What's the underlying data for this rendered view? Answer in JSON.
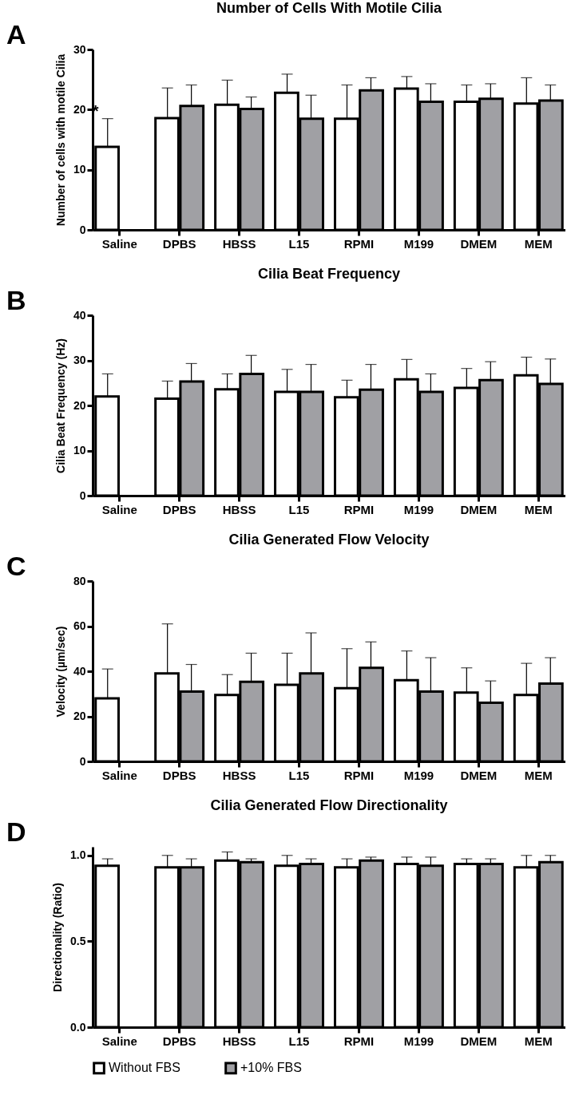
{
  "chart_data": [
    {
      "type": "bar",
      "title": "Number of Cells With Motile Cilia",
      "ylabel": "Number of cells with motile Cilia",
      "annotations": [
        "A",
        {
          "text": "*",
          "x": "Saline",
          "y": 13.8
        }
      ],
      "categories": [
        "Saline",
        "DPBS",
        "HBSS",
        "L15",
        "RPMI",
        "M199",
        "DMEM",
        "MEM"
      ],
      "ylim": [
        0,
        30
      ],
      "yticks": [
        0,
        10,
        20,
        30
      ],
      "grid": false,
      "series": [
        {
          "color": "#ffffff",
          "values": [
            13.8,
            18.6,
            20.8,
            22.8,
            18.5,
            23.5,
            21.3,
            21.0
          ],
          "errors": [
            [
              13.8,
              18.5
            ],
            [
              18.6,
              23.6
            ],
            [
              20.8,
              24.9
            ],
            [
              22.8,
              25.9
            ],
            [
              18.5,
              24.1
            ],
            [
              23.5,
              25.5
            ],
            [
              21.3,
              24.1
            ],
            [
              21.0,
              25.3
            ]
          ]
        },
        {
          "color": "#a0a0a4",
          "values": [
            null,
            20.6,
            20.1,
            18.5,
            23.2,
            21.3,
            21.8,
            21.5
          ],
          "errors": [
            null,
            [
              20.6,
              24.1
            ],
            [
              20.1,
              22.1
            ],
            [
              18.5,
              22.4
            ],
            [
              23.2,
              25.3
            ],
            [
              21.3,
              24.3
            ],
            [
              21.8,
              24.3
            ],
            [
              21.5,
              24.1
            ]
          ]
        }
      ]
    },
    {
      "type": "bar",
      "title": "Cilia Beat Frequency",
      "ylabel": "Cilia Beat Frequency (Hz)",
      "annotations": [
        "B"
      ],
      "categories": [
        "Saline",
        "DPBS",
        "HBSS",
        "L15",
        "RPMI",
        "M199",
        "DMEM",
        "MEM"
      ],
      "ylim": [
        0,
        40
      ],
      "yticks": [
        0,
        10,
        20,
        30,
        40
      ],
      "grid": false,
      "series": [
        {
          "color": "#ffffff",
          "values": [
            22.0,
            21.5,
            23.6,
            23.0,
            21.8,
            25.8,
            23.9,
            26.7
          ],
          "errors": [
            [
              22.0,
              27.0
            ],
            [
              21.5,
              25.4
            ],
            [
              23.6,
              27.0
            ],
            [
              23.0,
              28.0
            ],
            [
              21.8,
              25.6
            ],
            [
              25.8,
              30.2
            ],
            [
              23.9,
              28.2
            ],
            [
              26.7,
              30.7
            ]
          ]
        },
        {
          "color": "#a0a0a4",
          "values": [
            null,
            25.3,
            27.0,
            23.0,
            23.5,
            23.0,
            25.6,
            24.8
          ],
          "errors": [
            null,
            [
              25.3,
              29.3
            ],
            [
              27.0,
              31.1
            ],
            [
              23.0,
              29.1
            ],
            [
              23.5,
              29.1
            ],
            [
              23.0,
              27.0
            ],
            [
              25.6,
              29.7
            ],
            [
              24.8,
              30.3
            ]
          ]
        }
      ]
    },
    {
      "type": "bar",
      "title": "Cilia Generated Flow Velocity",
      "ylabel": "Velocity (µm/sec)",
      "annotations": [
        "C"
      ],
      "categories": [
        "Saline",
        "DPBS",
        "HBSS",
        "L15",
        "RPMI",
        "M199",
        "DMEM",
        "MEM"
      ],
      "ylim": [
        0,
        80
      ],
      "yticks": [
        0,
        20,
        40,
        60,
        80
      ],
      "grid": false,
      "series": [
        {
          "color": "#ffffff",
          "values": [
            28,
            39,
            29.5,
            34,
            32.5,
            36,
            30.5,
            29.5
          ],
          "errors": [
            [
              28,
              41
            ],
            [
              39,
              61
            ],
            [
              29.5,
              38.5
            ],
            [
              34,
              48
            ],
            [
              32.5,
              50
            ],
            [
              36,
              49
            ],
            [
              30.5,
              41.5
            ],
            [
              29.5,
              43.5
            ]
          ]
        },
        {
          "color": "#a0a0a4",
          "values": [
            null,
            31,
            35.3,
            39,
            41.5,
            31,
            26,
            34.5
          ],
          "errors": [
            null,
            [
              31,
              43
            ],
            [
              35.3,
              48
            ],
            [
              39,
              57
            ],
            [
              41.5,
              53
            ],
            [
              31,
              46
            ],
            [
              26,
              35.7
            ],
            [
              34.5,
              46
            ]
          ]
        }
      ]
    },
    {
      "type": "bar",
      "title": "Cilia Generated Flow Directionality",
      "ylabel": "Directionality (Ratio)",
      "annotations": [
        "D"
      ],
      "categories": [
        "Saline",
        "DPBS",
        "HBSS",
        "L15",
        "RPMI",
        "M199",
        "DMEM",
        "MEM"
      ],
      "ylim": [
        0,
        1.05
      ],
      "yticks": [
        {
          "value": 0,
          "label": "0.0"
        },
        {
          "value": 0.5,
          "label": "0.5"
        },
        {
          "value": 1,
          "label": "1.0"
        }
      ],
      "grid": false,
      "legend": "bottom",
      "series": [
        {
          "name": "Without FBS",
          "color": "#ffffff",
          "values": [
            0.94,
            0.93,
            0.97,
            0.94,
            0.93,
            0.95,
            0.95,
            0.93
          ],
          "errors": [
            [
              0.94,
              0.98
            ],
            [
              0.93,
              1.0
            ],
            [
              0.97,
              1.02
            ],
            [
              0.94,
              1.0
            ],
            [
              0.93,
              0.98
            ],
            [
              0.95,
              0.99
            ],
            [
              0.95,
              0.98
            ],
            [
              0.93,
              1.0
            ]
          ]
        },
        {
          "name": "+10% FBS",
          "color": "#a0a0a4",
          "values": [
            null,
            0.93,
            0.96,
            0.95,
            0.97,
            0.94,
            0.95,
            0.96
          ],
          "errors": [
            null,
            [
              0.93,
              0.98
            ],
            [
              0.96,
              0.98
            ],
            [
              0.95,
              0.98
            ],
            [
              0.97,
              0.99
            ],
            [
              0.94,
              0.99
            ],
            [
              0.95,
              0.98
            ],
            [
              0.96,
              1.0
            ]
          ]
        }
      ]
    }
  ]
}
